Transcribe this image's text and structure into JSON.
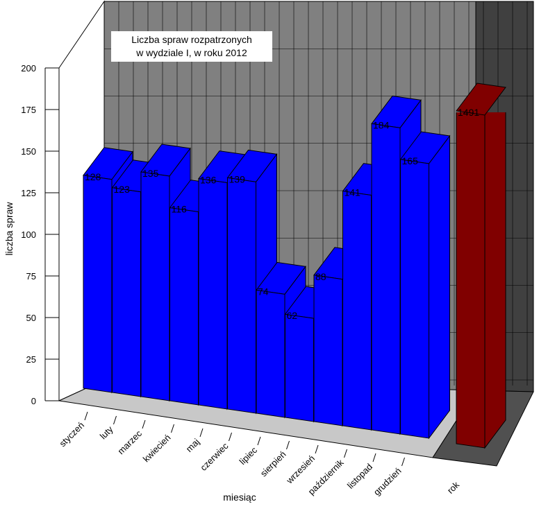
{
  "chart_data": {
    "type": "bar3d",
    "title": [
      "Liczba spraw rozpatrzonych",
      "w  wydziale I, w roku 2012"
    ],
    "x_label": "miesiąc",
    "y_label": "liczba spraw",
    "categories": [
      "styczeń",
      "luty",
      "marzec",
      "kwiecień",
      "maj",
      "czerwiec",
      "lipiec",
      "sierpień",
      "wrzesień",
      "październik",
      "listopad",
      "grudzień"
    ],
    "values": [
      128,
      123,
      135,
      116,
      136,
      139,
      74,
      62,
      88,
      141,
      184,
      165
    ],
    "color": "#0000ff",
    "total": {
      "category": "rok",
      "value": 1491,
      "color": "#800000"
    },
    "ylim": [
      0,
      200
    ],
    "yticks": [
      0,
      25,
      50,
      75,
      100,
      125,
      150,
      175,
      200
    ],
    "grid": true
  }
}
